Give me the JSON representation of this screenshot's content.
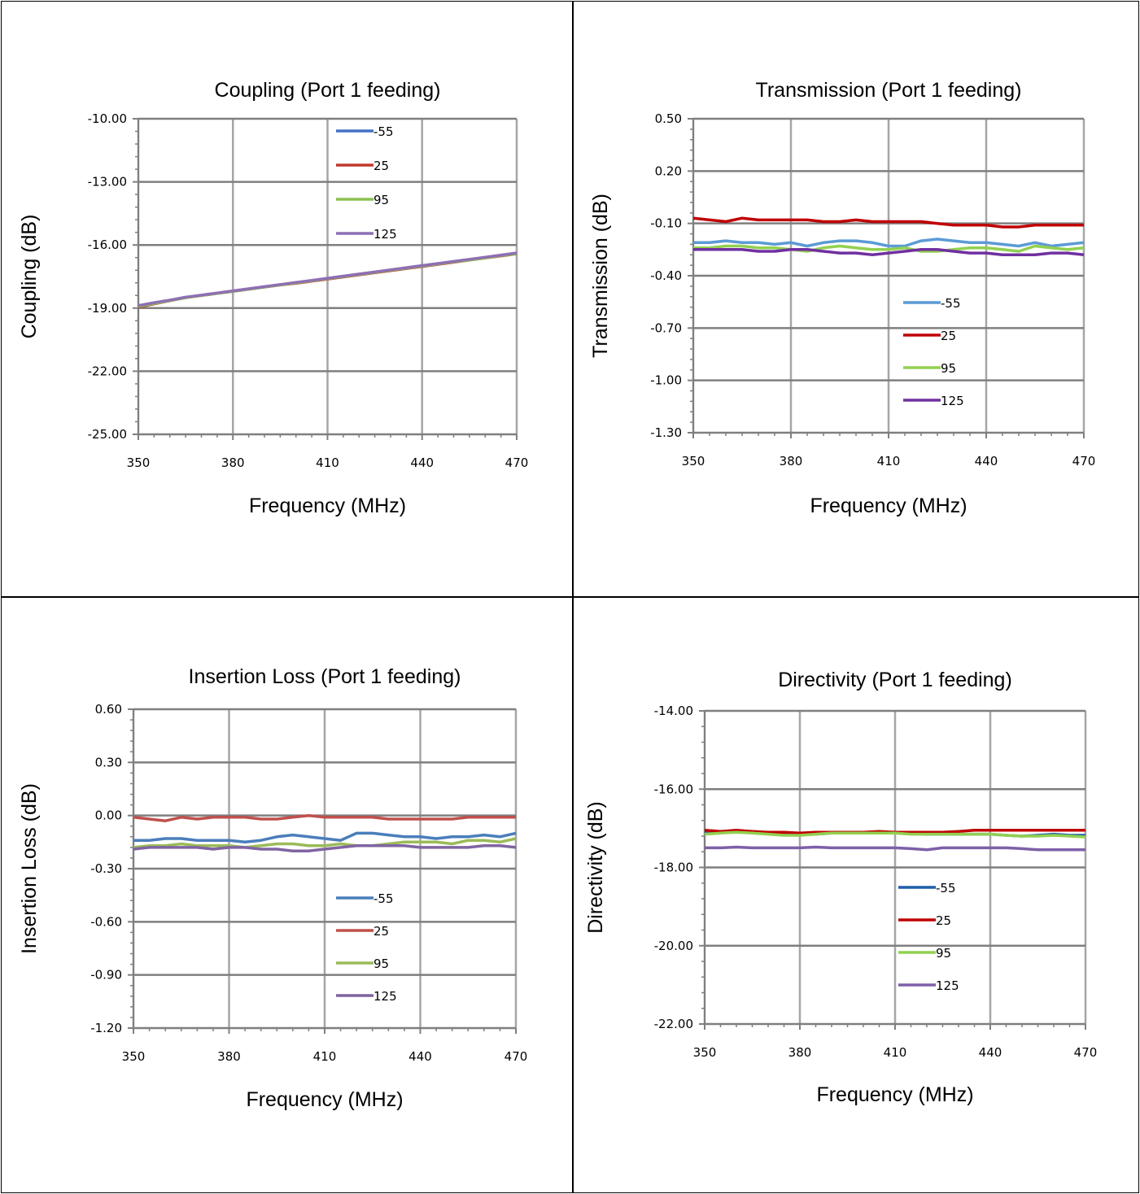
{
  "chart_data": [
    {
      "type": "line",
      "title": "Coupling (Port 1 feeding)",
      "xlabel": "Frequency (MHz)",
      "ylabel": "Coupling (dB)",
      "xlim": [
        350,
        470
      ],
      "ylim": [
        -25,
        -10
      ],
      "x_ticks": [
        "350",
        "380",
        "410",
        "440",
        "470"
      ],
      "y_ticks": [
        "-10.00",
        "-13.00",
        "-16.00",
        "-19.00",
        "-22.00",
        "-25.00"
      ],
      "legend_position": "top-center",
      "x": [
        350,
        355,
        360,
        365,
        370,
        375,
        380,
        385,
        390,
        395,
        400,
        405,
        410,
        415,
        420,
        425,
        430,
        435,
        440,
        445,
        450,
        455,
        460,
        465,
        470
      ],
      "series": [
        {
          "name": "-55",
          "color": "#4472c4",
          "values": [
            -18.9,
            -18.75,
            -18.65,
            -18.5,
            -18.4,
            -18.3,
            -18.2,
            -18.1,
            -18.0,
            -17.9,
            -17.8,
            -17.7,
            -17.6,
            -17.5,
            -17.4,
            -17.3,
            -17.2,
            -17.1,
            -17.0,
            -16.9,
            -16.8,
            -16.7,
            -16.6,
            -16.5,
            -16.4
          ]
        },
        {
          "name": "25",
          "color": "#c0392b",
          "values": [
            -18.95,
            -18.8,
            -18.65,
            -18.5,
            -18.4,
            -18.3,
            -18.2,
            -18.1,
            -18.0,
            -17.9,
            -17.82,
            -17.72,
            -17.62,
            -17.52,
            -17.42,
            -17.32,
            -17.22,
            -17.12,
            -17.02,
            -16.92,
            -16.82,
            -16.72,
            -16.62,
            -16.52,
            -16.42
          ]
        },
        {
          "name": "95",
          "color": "#8cc152",
          "values": [
            -18.92,
            -18.78,
            -18.65,
            -18.5,
            -18.4,
            -18.3,
            -18.2,
            -18.1,
            -18.0,
            -17.9,
            -17.8,
            -17.7,
            -17.6,
            -17.5,
            -17.4,
            -17.3,
            -17.2,
            -17.1,
            -17.0,
            -16.9,
            -16.8,
            -16.72,
            -16.62,
            -16.5,
            -16.42
          ]
        },
        {
          "name": "125",
          "color": "#8e6fb4",
          "values": [
            -18.88,
            -18.74,
            -18.62,
            -18.48,
            -18.38,
            -18.28,
            -18.18,
            -18.08,
            -17.98,
            -17.88,
            -17.78,
            -17.68,
            -17.58,
            -17.48,
            -17.38,
            -17.28,
            -17.18,
            -17.08,
            -16.98,
            -16.88,
            -16.78,
            -16.68,
            -16.58,
            -16.48,
            -16.38
          ]
        }
      ]
    },
    {
      "type": "line",
      "title": "Transmission (Port 1 feeding)",
      "xlabel": "Frequency (MHz)",
      "ylabel": "Transmission (dB)",
      "xlim": [
        350,
        470
      ],
      "ylim": [
        -1.3,
        0.5
      ],
      "x_ticks": [
        "350",
        "380",
        "410",
        "440",
        "470"
      ],
      "y_ticks": [
        "0.50",
        "0.20",
        "-0.10",
        "-0.40",
        "-0.70",
        "-1.00",
        "-1.30"
      ],
      "legend_position": "center",
      "x": [
        350,
        355,
        360,
        365,
        370,
        375,
        380,
        385,
        390,
        395,
        400,
        405,
        410,
        415,
        420,
        425,
        430,
        435,
        440,
        445,
        450,
        455,
        460,
        465,
        470
      ],
      "series": [
        {
          "name": "-55",
          "color": "#5b9bd5",
          "values": [
            -0.21,
            -0.21,
            -0.2,
            -0.21,
            -0.21,
            -0.22,
            -0.21,
            -0.23,
            -0.21,
            -0.2,
            -0.2,
            -0.21,
            -0.23,
            -0.23,
            -0.2,
            -0.19,
            -0.2,
            -0.21,
            -0.21,
            -0.22,
            -0.23,
            -0.21,
            -0.23,
            -0.22,
            -0.21
          ]
        },
        {
          "name": "25",
          "color": "#c00000",
          "values": [
            -0.07,
            -0.08,
            -0.09,
            -0.07,
            -0.08,
            -0.08,
            -0.08,
            -0.08,
            -0.09,
            -0.09,
            -0.08,
            -0.09,
            -0.09,
            -0.09,
            -0.09,
            -0.1,
            -0.11,
            -0.11,
            -0.11,
            -0.12,
            -0.12,
            -0.11,
            -0.11,
            -0.11,
            -0.11
          ]
        },
        {
          "name": "95",
          "color": "#92d050",
          "values": [
            -0.24,
            -0.24,
            -0.23,
            -0.23,
            -0.24,
            -0.24,
            -0.25,
            -0.26,
            -0.24,
            -0.23,
            -0.24,
            -0.25,
            -0.25,
            -0.24,
            -0.26,
            -0.26,
            -0.25,
            -0.24,
            -0.24,
            -0.25,
            -0.26,
            -0.23,
            -0.24,
            -0.25,
            -0.24
          ]
        },
        {
          "name": "125",
          "color": "#7030a0",
          "values": [
            -0.25,
            -0.25,
            -0.25,
            -0.25,
            -0.26,
            -0.26,
            -0.25,
            -0.25,
            -0.26,
            -0.27,
            -0.27,
            -0.28,
            -0.27,
            -0.26,
            -0.25,
            -0.25,
            -0.26,
            -0.27,
            -0.27,
            -0.28,
            -0.28,
            -0.28,
            -0.27,
            -0.27,
            -0.28
          ]
        }
      ]
    },
    {
      "type": "line",
      "title": "Insertion Loss (Port 1 feeding)",
      "xlabel": "Frequency (MHz)",
      "ylabel": "Insertion Loss (dB)",
      "xlim": [
        350,
        470
      ],
      "ylim": [
        -1.2,
        0.6
      ],
      "x_ticks": [
        "350",
        "380",
        "410",
        "440",
        "470"
      ],
      "y_ticks": [
        "0.60",
        "0.30",
        "0.00",
        "-0.30",
        "-0.60",
        "-0.90",
        "-1.20"
      ],
      "legend_position": "center",
      "x": [
        350,
        355,
        360,
        365,
        370,
        375,
        380,
        385,
        390,
        395,
        400,
        405,
        410,
        415,
        420,
        425,
        430,
        435,
        440,
        445,
        450,
        455,
        460,
        465,
        470
      ],
      "series": [
        {
          "name": "-55",
          "color": "#4a7ebb",
          "values": [
            -0.14,
            -0.14,
            -0.13,
            -0.13,
            -0.14,
            -0.14,
            -0.14,
            -0.15,
            -0.14,
            -0.12,
            -0.11,
            -0.12,
            -0.13,
            -0.14,
            -0.1,
            -0.1,
            -0.11,
            -0.12,
            -0.12,
            -0.13,
            -0.12,
            -0.12,
            -0.11,
            -0.12,
            -0.1
          ]
        },
        {
          "name": "25",
          "color": "#c0504d",
          "values": [
            -0.01,
            -0.02,
            -0.03,
            -0.01,
            -0.02,
            -0.01,
            -0.01,
            -0.01,
            -0.02,
            -0.02,
            -0.01,
            0.0,
            -0.01,
            -0.01,
            -0.01,
            -0.01,
            -0.02,
            -0.02,
            -0.02,
            -0.02,
            -0.02,
            -0.01,
            -0.01,
            -0.01,
            -0.01
          ]
        },
        {
          "name": "95",
          "color": "#9bbb59",
          "values": [
            -0.18,
            -0.17,
            -0.17,
            -0.16,
            -0.17,
            -0.17,
            -0.17,
            -0.18,
            -0.17,
            -0.16,
            -0.16,
            -0.17,
            -0.17,
            -0.16,
            -0.17,
            -0.17,
            -0.16,
            -0.15,
            -0.15,
            -0.15,
            -0.16,
            -0.14,
            -0.14,
            -0.15,
            -0.13
          ]
        },
        {
          "name": "125",
          "color": "#8064a2",
          "values": [
            -0.19,
            -0.18,
            -0.18,
            -0.18,
            -0.18,
            -0.19,
            -0.18,
            -0.18,
            -0.19,
            -0.19,
            -0.2,
            -0.2,
            -0.19,
            -0.18,
            -0.17,
            -0.17,
            -0.17,
            -0.17,
            -0.18,
            -0.18,
            -0.18,
            -0.18,
            -0.17,
            -0.17,
            -0.18
          ]
        }
      ]
    },
    {
      "type": "line",
      "title": "Directivity (Port 1 feeding)",
      "xlabel": "Frequency (MHz)",
      "ylabel": "Directivity (dB)",
      "xlim": [
        350,
        470
      ],
      "ylim": [
        -22,
        -14
      ],
      "x_ticks": [
        "350",
        "380",
        "410",
        "440",
        "470"
      ],
      "y_ticks": [
        "-14.00",
        "-16.00",
        "-18.00",
        "-20.00",
        "-22.00"
      ],
      "legend_position": "center",
      "x": [
        350,
        355,
        360,
        365,
        370,
        375,
        380,
        385,
        390,
        395,
        400,
        405,
        410,
        415,
        420,
        425,
        430,
        435,
        440,
        445,
        450,
        455,
        460,
        465,
        470
      ],
      "series": [
        {
          "name": "-55",
          "color": "#1f5fa8",
          "values": [
            -17.1,
            -17.1,
            -17.1,
            -17.1,
            -17.1,
            -17.12,
            -17.15,
            -17.15,
            -17.12,
            -17.1,
            -17.1,
            -17.1,
            -17.1,
            -17.12,
            -17.15,
            -17.15,
            -17.15,
            -17.15,
            -17.15,
            -17.18,
            -17.2,
            -17.18,
            -17.15,
            -17.18,
            -17.18
          ]
        },
        {
          "name": "25",
          "color": "#c00000",
          "values": [
            -17.05,
            -17.08,
            -17.05,
            -17.08,
            -17.1,
            -17.1,
            -17.12,
            -17.1,
            -17.1,
            -17.1,
            -17.1,
            -17.08,
            -17.1,
            -17.1,
            -17.1,
            -17.1,
            -17.08,
            -17.05,
            -17.05,
            -17.05,
            -17.05,
            -17.05,
            -17.05,
            -17.05,
            -17.05
          ]
        },
        {
          "name": "95",
          "color": "#92d050",
          "values": [
            -17.15,
            -17.12,
            -17.1,
            -17.12,
            -17.15,
            -17.18,
            -17.18,
            -17.15,
            -17.12,
            -17.12,
            -17.12,
            -17.12,
            -17.12,
            -17.15,
            -17.15,
            -17.15,
            -17.15,
            -17.15,
            -17.15,
            -17.18,
            -17.2,
            -17.2,
            -17.18,
            -17.2,
            -17.22
          ]
        },
        {
          "name": "125",
          "color": "#7f5fa8",
          "values": [
            -17.5,
            -17.5,
            -17.48,
            -17.5,
            -17.5,
            -17.5,
            -17.5,
            -17.48,
            -17.5,
            -17.5,
            -17.5,
            -17.5,
            -17.5,
            -17.52,
            -17.55,
            -17.5,
            -17.5,
            -17.5,
            -17.5,
            -17.5,
            -17.52,
            -17.55,
            -17.55,
            -17.55,
            -17.55
          ]
        }
      ]
    }
  ]
}
